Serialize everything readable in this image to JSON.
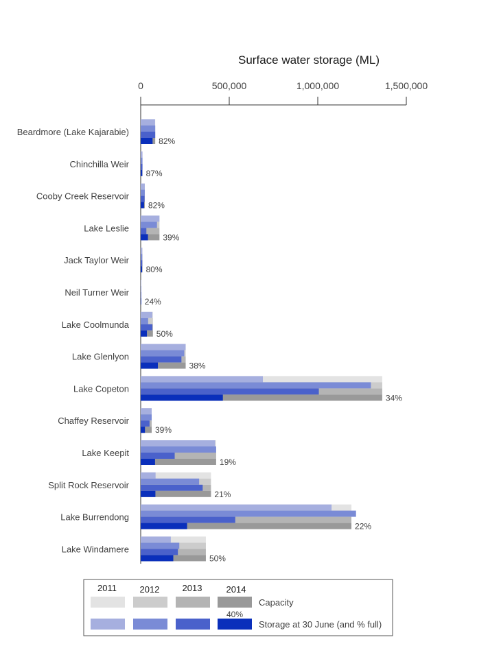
{
  "chart_data": {
    "type": "bar",
    "orientation": "horizontal",
    "title": "Surface water storage (ML)",
    "xlim": [
      0,
      1500000
    ],
    "x_ticks": [
      0,
      500000,
      1000000,
      1500000
    ],
    "x_tick_labels": [
      "0",
      "500,000",
      "1,000,000",
      "1,500,000"
    ],
    "years": [
      "2011",
      "2012",
      "2013",
      "2014"
    ],
    "categories": [
      "Beardmore (Lake Kajarabie)",
      "Chinchilla Weir",
      "Cooby Creek Reservoir",
      "Lake Leslie",
      "Jack Taylor Weir",
      "Neil Turner Weir",
      "Lake Coolmunda",
      "Lake Glenlyon",
      "Lake Copeton",
      "Chaffey Reservoir",
      "Lake Keepit",
      "Split Rock Reservoir",
      "Lake Burrendong",
      "Lake Windamere"
    ],
    "capacity": [
      82000,
      10000,
      23000,
      106000,
      10000,
      3000,
      69000,
      254000,
      1364000,
      62000,
      426000,
      397000,
      1190000,
      368000
    ],
    "series": [
      {
        "name": "2011",
        "values": [
          81000,
          10000,
          23000,
          106000,
          9000,
          3000,
          66000,
          254000,
          690000,
          62000,
          420000,
          84000,
          1078000,
          170000
        ]
      },
      {
        "name": "2012",
        "values": [
          82000,
          10000,
          23000,
          92000,
          9000,
          3000,
          42000,
          246000,
          1300000,
          62000,
          426000,
          330000,
          1216000,
          218000
        ]
      },
      {
        "name": "2013",
        "values": [
          82000,
          10000,
          22000,
          32000,
          9000,
          1000,
          66000,
          230000,
          1006000,
          50000,
          192000,
          350000,
          534000,
          210000
        ]
      },
      {
        "name": "2014",
        "values": [
          67000,
          9000,
          19000,
          41000,
          8000,
          700,
          35000,
          97000,
          464000,
          24000,
          81000,
          83000,
          262000,
          184000
        ]
      }
    ],
    "pct_full_2014": [
      "82%",
      "87%",
      "82%",
      "39%",
      "80%",
      "24%",
      "50%",
      "38%",
      "34%",
      "39%",
      "19%",
      "21%",
      "22%",
      "50%"
    ],
    "legend": {
      "capacity_label": "Capacity",
      "storage_label": "Storage at 30 June (and % full)",
      "example_pct": "40%",
      "position": "bottom"
    }
  },
  "colors": {
    "capacity": [
      "#e3e3e3",
      "#cccccc",
      "#b4b4b4",
      "#999999"
    ],
    "storage": [
      "#a6afdf",
      "#7a8bd6",
      "#4a61cb",
      "#0a2fbb"
    ],
    "axis": "#333333",
    "legend_border": "#555555"
  }
}
